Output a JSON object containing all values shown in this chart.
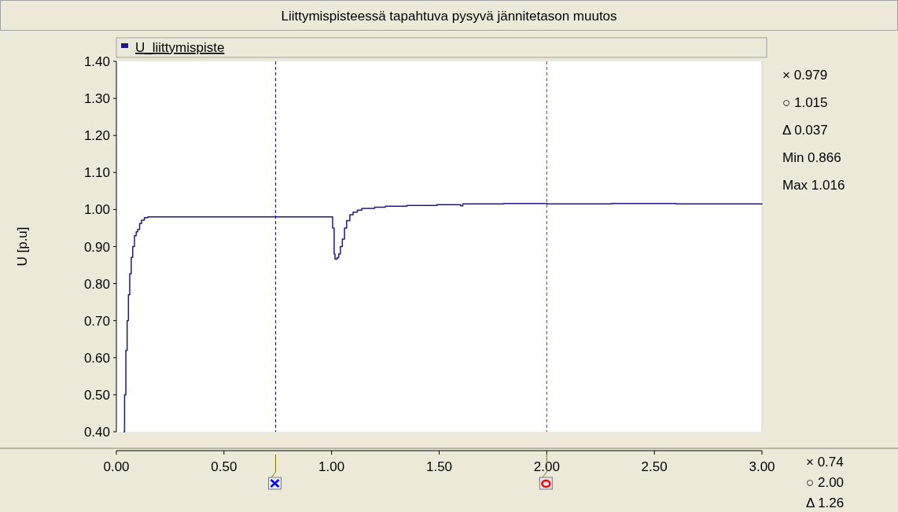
{
  "chart_data": {
    "type": "step",
    "title": "Liittymispisteessä tapahtuva pysyvä jännitetason muutos",
    "ylabel": "U [p.u]",
    "x": [
      0.033,
      0.038,
      0.044,
      0.05,
      0.056,
      0.062,
      0.069,
      0.076,
      0.084,
      0.092,
      0.099,
      0.108,
      0.117,
      0.13,
      0.146,
      0.2,
      0.4,
      0.6,
      0.8,
      0.999,
      1.005,
      1.012,
      1.016,
      1.025,
      1.033,
      1.041,
      1.05,
      1.06,
      1.07,
      1.085,
      1.1,
      1.12,
      1.14,
      1.2,
      1.25,
      1.35,
      1.49,
      1.6,
      1.61,
      1.62,
      1.8,
      2.0,
      2.3,
      2.6,
      3.0
    ],
    "series": [
      {
        "name": "U_liittymispiste",
        "color": "#1a1a80",
        "values": [
          0.4,
          0.5,
          0.62,
          0.7,
          0.77,
          0.827,
          0.871,
          0.9,
          0.929,
          0.94,
          0.946,
          0.962,
          0.971,
          0.978,
          0.98,
          0.98,
          0.98,
          0.98,
          0.98,
          0.98,
          0.95,
          0.88,
          0.866,
          0.87,
          0.88,
          0.9,
          0.92,
          0.95,
          0.97,
          0.986,
          0.993,
          0.998,
          1.003,
          1.006,
          1.009,
          1.011,
          1.013,
          1.01,
          1.015,
          1.015,
          1.016,
          1.015,
          1.016,
          1.015,
          1.016
        ]
      }
    ],
    "xlim": [
      0,
      3
    ],
    "xticks": [
      {
        "value": 0,
        "label": "0.00"
      },
      {
        "value": 0.5,
        "label": "0.50"
      },
      {
        "value": 1,
        "label": "1.00"
      },
      {
        "value": 1.5,
        "label": "1.50"
      },
      {
        "value": 2,
        "label": "2.00"
      },
      {
        "value": 2.5,
        "label": "2.50"
      },
      {
        "value": 3,
        "label": "3.00"
      }
    ],
    "ylim": [
      0.4,
      1.4
    ],
    "yticks": [
      {
        "value": 0.4,
        "label": "0.40"
      },
      {
        "value": 0.5,
        "label": "0.50"
      },
      {
        "value": 0.6,
        "label": "0.60"
      },
      {
        "value": 0.7,
        "label": "0.70"
      },
      {
        "value": 0.8,
        "label": "0.80"
      },
      {
        "value": 0.9,
        "label": "0.90"
      },
      {
        "value": 1.0,
        "label": "1.00"
      },
      {
        "value": 1.1,
        "label": "1.10"
      },
      {
        "value": 1.2,
        "label": "1.20"
      },
      {
        "value": 1.3,
        "label": "1.30"
      },
      {
        "value": 1.4,
        "label": "1.40"
      }
    ],
    "ref_lines": [
      {
        "axis": "x",
        "value": 0.74,
        "color": "#0000ff",
        "line_style": "dashed"
      },
      {
        "axis": "x",
        "value": 2.0,
        "color": "#ff0000",
        "line_style": "dashed"
      }
    ],
    "annotations": [
      "× 0.979",
      "○ 1.015",
      "Δ 0.037",
      "Min 0.866",
      "Max 1.016",
      "× 0.74",
      "○ 2.00",
      "Δ 1.26"
    ],
    "legend": "top left",
    "grid": false,
    "marker": "none",
    "line_style": "solid"
  }
}
